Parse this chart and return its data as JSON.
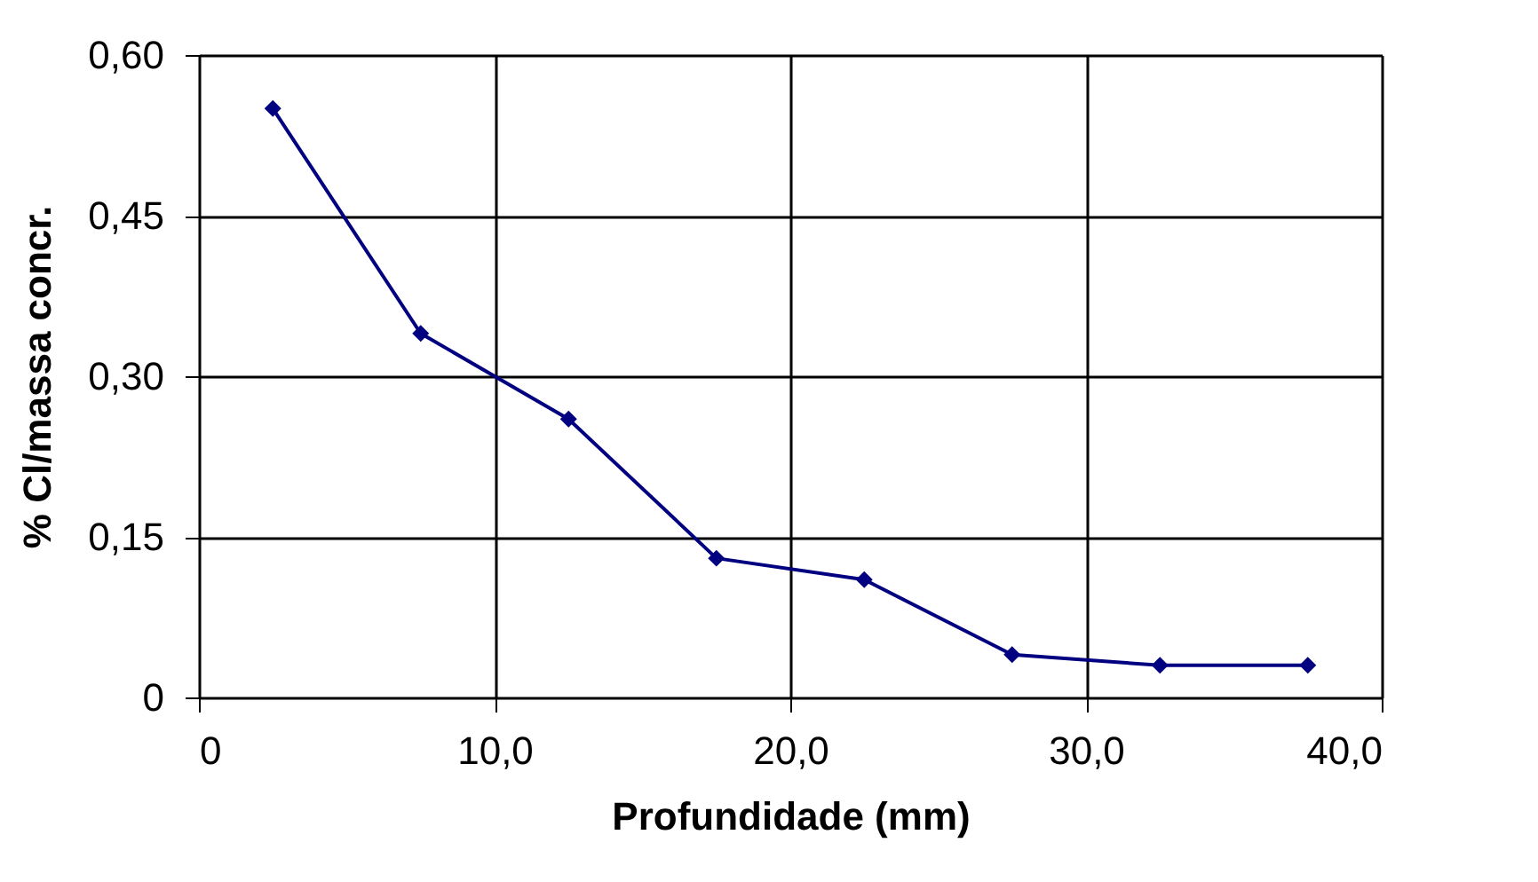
{
  "chart_data": {
    "type": "line",
    "xlabel": "Profundidade (mm)",
    "ylabel": "% Cl/massa concr.",
    "x": [
      2.5,
      7.5,
      12.5,
      17.5,
      22.5,
      27.5,
      32.5,
      37.5
    ],
    "series": [
      {
        "color": "#000080",
        "values": [
          0.55,
          0.34,
          0.26,
          0.13,
          0.11,
          0.04,
          0.03,
          0.03
        ]
      }
    ],
    "xlim": [
      0,
      40
    ],
    "xticks": [
      0,
      {
        "value": 10,
        "label": "10,0"
      },
      {
        "value": 20,
        "label": "20,0"
      },
      {
        "value": 30,
        "label": "30,0"
      },
      {
        "value": 40,
        "label": "40,0"
      }
    ],
    "ylim": [
      0,
      0.6
    ],
    "yticks": [
      0,
      {
        "value": 0.15,
        "label": "0,15"
      },
      {
        "value": 0.3,
        "label": "0,30"
      },
      {
        "value": 0.45,
        "label": "0,45"
      },
      {
        "value": 0.6,
        "label": "0,60"
      }
    ],
    "grid": true,
    "marker": "diamond",
    "line_style": "solid",
    "legend": false
  }
}
